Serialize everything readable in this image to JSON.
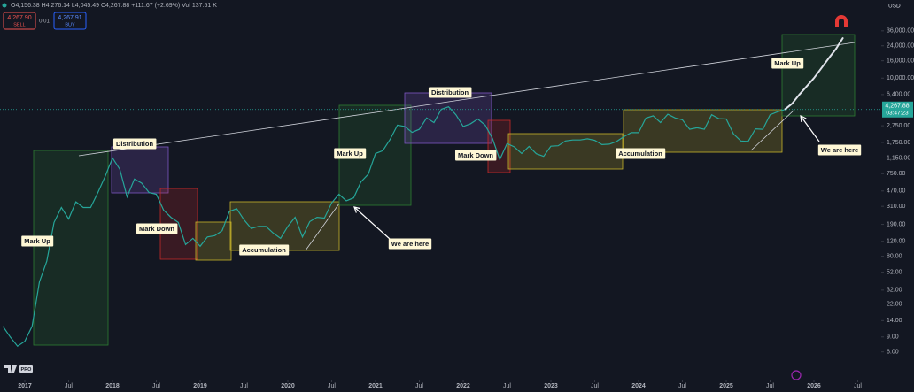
{
  "header": {
    "quote": "O4,156.38 H4,276.14 L4,045.49 C4,267.88 +111.67 (+2.69%) Vol 137.51 K",
    "sell_price": "4,267.90",
    "sell": "SELL",
    "spread": "0.01",
    "buy_price": "4,267.91",
    "buy": "BUY",
    "currency": "USD",
    "last_price": "4,267.88",
    "countdown": "03:47:23",
    "badge": "PRO"
  },
  "annotations": [
    "Mark Up",
    "Distribution",
    "Mark Down",
    "Accumulation",
    "Mark Up",
    "We are here",
    "Distribution",
    "Mark Down",
    "Accumulation",
    "Mark Up",
    "We are here"
  ],
  "chart_data": {
    "type": "line",
    "log_scale": true,
    "grid": false,
    "ylim": [
      2.9,
      83000
    ],
    "yticks": [
      {
        "value": 36000,
        "label": "36,000.00"
      },
      {
        "value": 24000,
        "label": "24,000.00"
      },
      {
        "value": 16000,
        "label": "16,000.00"
      },
      {
        "value": 10000,
        "label": "10,000.00"
      },
      {
        "value": 6400,
        "label": "6,400.00"
      },
      {
        "value": 2750,
        "label": "2,750.00"
      },
      {
        "value": 1750,
        "label": "1,750.00"
      },
      {
        "value": 1150,
        "label": "1,150.00"
      },
      {
        "value": 750,
        "label": "750.00"
      },
      {
        "value": 470,
        "label": "470.00"
      },
      {
        "value": 310,
        "label": "310.00"
      },
      {
        "value": 190,
        "label": "190.00"
      },
      {
        "value": 120,
        "label": "120.00"
      },
      {
        "value": 80,
        "label": "80.00"
      },
      {
        "value": 52,
        "label": "52.00"
      },
      {
        "value": 32,
        "label": "32.00"
      },
      {
        "value": 22,
        "label": "22.00"
      },
      {
        "value": 14,
        "label": "14.00"
      },
      {
        "value": 9,
        "label": "9.00"
      },
      {
        "value": 6,
        "label": "6.00"
      }
    ],
    "xticks": [
      {
        "value": "2017-01",
        "label": "2017"
      },
      {
        "value": "2017-07",
        "label": "Jul"
      },
      {
        "value": "2018-01",
        "label": "2018"
      },
      {
        "value": "2018-07",
        "label": "Jul"
      },
      {
        "value": "2019-01",
        "label": "2019"
      },
      {
        "value": "2019-07",
        "label": "Jul"
      },
      {
        "value": "2020-01",
        "label": "2020"
      },
      {
        "value": "2020-07",
        "label": "Jul"
      },
      {
        "value": "2021-01",
        "label": "2021"
      },
      {
        "value": "2021-07",
        "label": "Jul"
      },
      {
        "value": "2022-01",
        "label": "2022"
      },
      {
        "value": "2022-07",
        "label": "Jul"
      },
      {
        "value": "2023-01",
        "label": "2023"
      },
      {
        "value": "2023-07",
        "label": "Jul"
      },
      {
        "value": "2024-01",
        "label": "2024"
      },
      {
        "value": "2024-07",
        "label": "Jul"
      },
      {
        "value": "2025-01",
        "label": "2025"
      },
      {
        "value": "2025-07",
        "label": "Jul"
      },
      {
        "value": "2026-01",
        "label": "2026"
      },
      {
        "value": "2026-07",
        "label": "Jul"
      }
    ],
    "series": [
      {
        "color": "#26a69a",
        "x": [
          "2016-10",
          "2016-11",
          "2016-12",
          "2017-01",
          "2017-02",
          "2017-03",
          "2017-04",
          "2017-05",
          "2017-06",
          "2017-07",
          "2017-08",
          "2017-09",
          "2017-10",
          "2017-11",
          "2017-12",
          "2018-01",
          "2018-02",
          "2018-03",
          "2018-04",
          "2018-05",
          "2018-06",
          "2018-07",
          "2018-08",
          "2018-09",
          "2018-10",
          "2018-11",
          "2018-12",
          "2019-01",
          "2019-02",
          "2019-03",
          "2019-04",
          "2019-05",
          "2019-06",
          "2019-07",
          "2019-08",
          "2019-09",
          "2019-10",
          "2019-11",
          "2019-12",
          "2020-01",
          "2020-02",
          "2020-03",
          "2020-04",
          "2020-05",
          "2020-06",
          "2020-07",
          "2020-08",
          "2020-09",
          "2020-10",
          "2020-11",
          "2020-12",
          "2021-01",
          "2021-02",
          "2021-03",
          "2021-04",
          "2021-05",
          "2021-06",
          "2021-07",
          "2021-08",
          "2021-09",
          "2021-10",
          "2021-11",
          "2021-12",
          "2022-01",
          "2022-02",
          "2022-03",
          "2022-04",
          "2022-05",
          "2022-06",
          "2022-07",
          "2022-08",
          "2022-09",
          "2022-10",
          "2022-11",
          "2022-12",
          "2023-01",
          "2023-02",
          "2023-03",
          "2023-04",
          "2023-05",
          "2023-06",
          "2023-07",
          "2023-08",
          "2023-09",
          "2023-10",
          "2023-11",
          "2023-12",
          "2024-01",
          "2024-02",
          "2024-03",
          "2024-04",
          "2024-05",
          "2024-06",
          "2024-07",
          "2024-08",
          "2024-09",
          "2024-10",
          "2024-11",
          "2024-12",
          "2025-01",
          "2025-02",
          "2025-03",
          "2025-04",
          "2025-05",
          "2025-06",
          "2025-07",
          "2025-08",
          "2025-09"
        ],
        "values": [
          12,
          9,
          7,
          8,
          12,
          40,
          70,
          200,
          300,
          220,
          350,
          300,
          300,
          450,
          700,
          1150,
          850,
          400,
          650,
          580,
          450,
          430,
          280,
          230,
          200,
          110,
          130,
          105,
          135,
          140,
          160,
          270,
          290,
          215,
          170,
          180,
          180,
          150,
          130,
          180,
          230,
          135,
          205,
          230,
          225,
          340,
          430,
          360,
          390,
          600,
          740,
          1300,
          1400,
          1900,
          2800,
          2700,
          2300,
          2500,
          3400,
          3000,
          4300,
          4600,
          3700,
          2700,
          2900,
          3300,
          2800,
          1950,
          1100,
          1700,
          1550,
          1300,
          1570,
          1290,
          1200,
          1580,
          1600,
          1820,
          1870,
          1870,
          1930,
          1850,
          1650,
          1670,
          1800,
          2050,
          2280,
          2280,
          3380,
          3600,
          3000,
          3760,
          3400,
          3230,
          2500,
          2600,
          2500,
          3700,
          3330,
          3300,
          2200,
          1820,
          1800,
          2530,
          2500,
          3700,
          4000,
          4268
        ]
      },
      {
        "color": "#e0e3eb",
        "x": [
          "2025-09",
          "2025-10",
          "2025-11",
          "2025-12",
          "2026-01",
          "2026-02",
          "2026-03",
          "2026-04",
          "2026-05"
        ],
        "values": [
          4268,
          5000,
          6400,
          8000,
          10000,
          13000,
          17000,
          22000,
          30000
        ]
      }
    ]
  }
}
